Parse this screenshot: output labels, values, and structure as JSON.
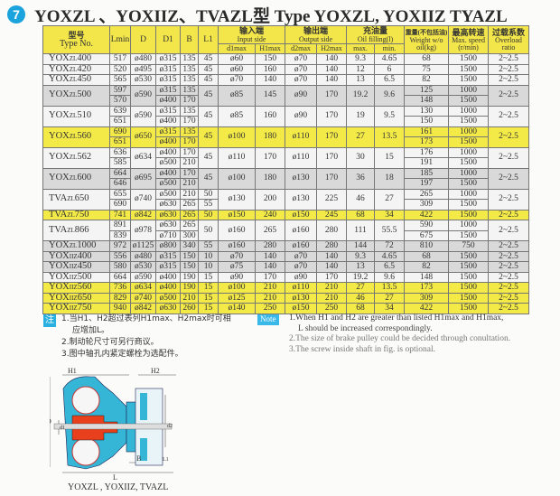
{
  "title": {
    "number": "7",
    "text": "YOXZL 、YOXIIZ、TVAZL型   Type YOXZL, YOXIIZ TYAZL"
  },
  "header": {
    "type": {
      "cn": "型号",
      "en": "Type No."
    },
    "lmin": "Lmin",
    "d": "D",
    "d1": "D1",
    "b": "B",
    "l1": "L1",
    "input": {
      "cn": "输入端",
      "en": "Input side",
      "d1max": "d1max",
      "h1max": "H1max"
    },
    "output": {
      "cn": "输出端",
      "en": "Output side",
      "d2max": "d2max",
      "h2max": "H2max"
    },
    "oil": {
      "cn": "充油量",
      "en": "Oil filling(l)",
      "max": "max.",
      "min": "min."
    },
    "weight": {
      "cn": "重量(不包括油)",
      "en": "Weight w/o oil(kg)"
    },
    "speed": {
      "cn": "最高转速",
      "en": "Max. speed (r/min)"
    },
    "overload": {
      "cn": "过载系数",
      "en": "Overload ratio"
    }
  },
  "rows": [
    {
      "pre": "YOX",
      "mid": "ZL",
      "num": "400",
      "tone": "w",
      "cells": [
        "517",
        "ø480",
        "ø315",
        "135",
        "45",
        "ø60",
        "150",
        "ø70",
        "140",
        "9.3",
        "4.65",
        "68",
        "1500",
        "2~2.5"
      ]
    },
    {
      "pre": "YOX",
      "mid": "ZL",
      "num": "420",
      "tone": "w",
      "cells": [
        "520",
        "ø495",
        "ø315",
        "135",
        "45",
        "ø60",
        "160",
        "ø70",
        "140",
        "12",
        "6",
        "75",
        "1500",
        "2~2.5"
      ]
    },
    {
      "pre": "YOX",
      "mid": "ZL",
      "num": "450",
      "tone": "w",
      "cells": [
        "565",
        "ø530",
        "ø315",
        "135",
        "45",
        "ø70",
        "140",
        "ø70",
        "140",
        "13",
        "6.5",
        "82",
        "1500",
        "2~2.5"
      ]
    },
    {
      "pre": "YOX",
      "mid": "ZL",
      "num": "500",
      "tone": "g",
      "cells": [
        [
          "597",
          "570"
        ],
        "ø590",
        [
          "ø315",
          "ø400"
        ],
        [
          "135",
          "170"
        ],
        "45",
        "ø85",
        "145",
        "ø90",
        "170",
        "19.2",
        "9.6",
        [
          "125",
          "148"
        ],
        [
          "1000",
          "1500"
        ],
        "2~2.5"
      ]
    },
    {
      "pre": "YOX",
      "mid": "ZL",
      "num": "510",
      "tone": "w",
      "cells": [
        [
          "639",
          "651"
        ],
        "ø590",
        [
          "ø315",
          "ø400"
        ],
        [
          "135",
          "170"
        ],
        "45",
        "ø85",
        "160",
        "ø90",
        "170",
        "19",
        "9.5",
        [
          "130",
          "150"
        ],
        [
          "1000",
          "1500"
        ],
        "2~2.5"
      ]
    },
    {
      "pre": "YOX",
      "mid": "ZL",
      "num": "560",
      "tone": "y",
      "cells": [
        [
          "690",
          "651"
        ],
        "ø650",
        [
          "ø315",
          "ø400"
        ],
        [
          "135",
          "170"
        ],
        "45",
        "ø100",
        "180",
        "ø110",
        "170",
        "27",
        "13.5",
        [
          "161",
          "173"
        ],
        [
          "1000",
          "1500"
        ],
        "2~2.5"
      ]
    },
    {
      "pre": "YOX",
      "mid": "ZL",
      "num": "562",
      "tone": "w",
      "cells": [
        [
          "636",
          "585"
        ],
        "ø634",
        [
          "ø400",
          "ø500"
        ],
        [
          "170",
          "210"
        ],
        "45",
        "ø110",
        "170",
        "ø110",
        "170",
        "30",
        "15",
        [
          "176",
          "191"
        ],
        [
          "1000",
          "1500"
        ],
        "2~2.5"
      ]
    },
    {
      "pre": "YOX",
      "mid": "ZL",
      "num": "600",
      "tone": "g",
      "cells": [
        [
          "664",
          "646"
        ],
        "ø695",
        [
          "ø400",
          "ø500"
        ],
        [
          "170",
          "210"
        ],
        "45",
        "ø100",
        "180",
        "ø130",
        "170",
        "36",
        "18",
        [
          "185",
          "197"
        ],
        [
          "1000",
          "1500"
        ],
        "2~2.5"
      ]
    },
    {
      "pre": "TVA",
      "mid": "ZL",
      "num": "650",
      "tone": "w",
      "cells": [
        [
          "655",
          "690"
        ],
        "ø740",
        [
          "ø500",
          "ø630"
        ],
        [
          "210",
          "265"
        ],
        [
          "50",
          "55"
        ],
        "ø130",
        "200",
        "ø130",
        "225",
        "46",
        "27",
        [
          "265",
          "309"
        ],
        [
          "1000",
          "1500"
        ],
        "2~2.5"
      ]
    },
    {
      "pre": "TVA",
      "mid": "ZL",
      "num": "750",
      "tone": "y",
      "cells": [
        "741",
        "ø842",
        "ø630",
        "265",
        "50",
        "ø150",
        "240",
        "ø150",
        "245",
        "68",
        "34",
        "422",
        "1500",
        "2~2.5"
      ]
    },
    {
      "pre": "TVA",
      "mid": "ZL",
      "num": "866",
      "tone": "w",
      "cells": [
        [
          "891",
          "839"
        ],
        "ø978",
        [
          "ø630",
          "ø710"
        ],
        [
          "265",
          "300"
        ],
        "50",
        "ø160",
        "265",
        "ø160",
        "280",
        "111",
        "55.5",
        [
          "590",
          "675"
        ],
        [
          "1000",
          "1500"
        ],
        "2~2.5"
      ]
    },
    {
      "pre": "YOX",
      "mid": "ZL",
      "num": "1000",
      "tone": "g",
      "cells": [
        "972",
        "ø1125",
        "ø800",
        "340",
        "55",
        "ø160",
        "280",
        "ø160",
        "280",
        "144",
        "72",
        "810",
        "750",
        "2~2.5"
      ]
    },
    {
      "pre": "YOX",
      "mid": "IIZ",
      "num": "400",
      "tone": "g",
      "cells": [
        "556",
        "ø480",
        "ø315",
        "150",
        "10",
        "ø70",
        "140",
        "ø70",
        "140",
        "9.3",
        "4.65",
        "68",
        "1500",
        "2~2.5"
      ]
    },
    {
      "pre": "YOX",
      "mid": "IIZ",
      "num": "450",
      "tone": "g",
      "cells": [
        "580",
        "ø530",
        "ø315",
        "150",
        "10",
        "ø75",
        "140",
        "ø70",
        "140",
        "13",
        "6.5",
        "82",
        "1500",
        "2~2.5"
      ]
    },
    {
      "pre": "YOX",
      "mid": "IIZ",
      "num": "500",
      "tone": "w",
      "cells": [
        "664",
        "ø590",
        "ø400",
        "190",
        "15",
        "ø90",
        "170",
        "ø90",
        "170",
        "19.2",
        "9.6",
        "148",
        "1500",
        "2~2.5"
      ]
    },
    {
      "pre": "YOX",
      "mid": "IIZ",
      "num": "560",
      "tone": "y",
      "cells": [
        "736",
        "ø634",
        "ø400",
        "190",
        "15",
        "ø100",
        "210",
        "ø110",
        "210",
        "27",
        "13.5",
        "173",
        "1500",
        "2~2.5"
      ]
    },
    {
      "pre": "YOX",
      "mid": "IIZ",
      "num": "650",
      "tone": "y",
      "cells": [
        "829",
        "ø740",
        "ø500",
        "210",
        "15",
        "ø125",
        "210",
        "ø130",
        "210",
        "46",
        "27",
        "309",
        "1500",
        "2~2.5"
      ]
    },
    {
      "pre": "YOX",
      "mid": "IIZ",
      "num": "750",
      "tone": "y",
      "cells": [
        "940",
        "ø842",
        "ø630",
        "260",
        "15",
        "ø140",
        "250",
        "ø150",
        "250",
        "68",
        "34",
        "422",
        "1500",
        "2~2.5"
      ]
    }
  ],
  "notes_cn": {
    "tag": "注",
    "items": [
      "1.当H1、H2超过表列H1max、H2max时可相",
      "应增加L。",
      "2.制动轮尺寸可另行商议。",
      "3.图中轴孔内紧定螺栓为选配件。"
    ]
  },
  "notes_en": {
    "tag": "Note",
    "items": [
      "1.When H1 and H2 are greater than listed H1max and H1max,",
      "L should be increased correspondingly.",
      "2.The size of brake pulley could be decided through conultation.",
      "3.The screw inside shaft in fig. is optional."
    ]
  },
  "diagram": {
    "labels": {
      "h1": "H1",
      "h2": "H2",
      "d": "D",
      "d1": "d1",
      "d2": "d2",
      "b": "B",
      "l1": "L1",
      "l": "L"
    },
    "caption": "YOXZL , YOXIIZ, TVAZL"
  },
  "colors": {
    "yellow": "#f3ea48",
    "grey": "#d9d9d9",
    "cyan": "#2fb4d8",
    "red": "#e8401c"
  }
}
